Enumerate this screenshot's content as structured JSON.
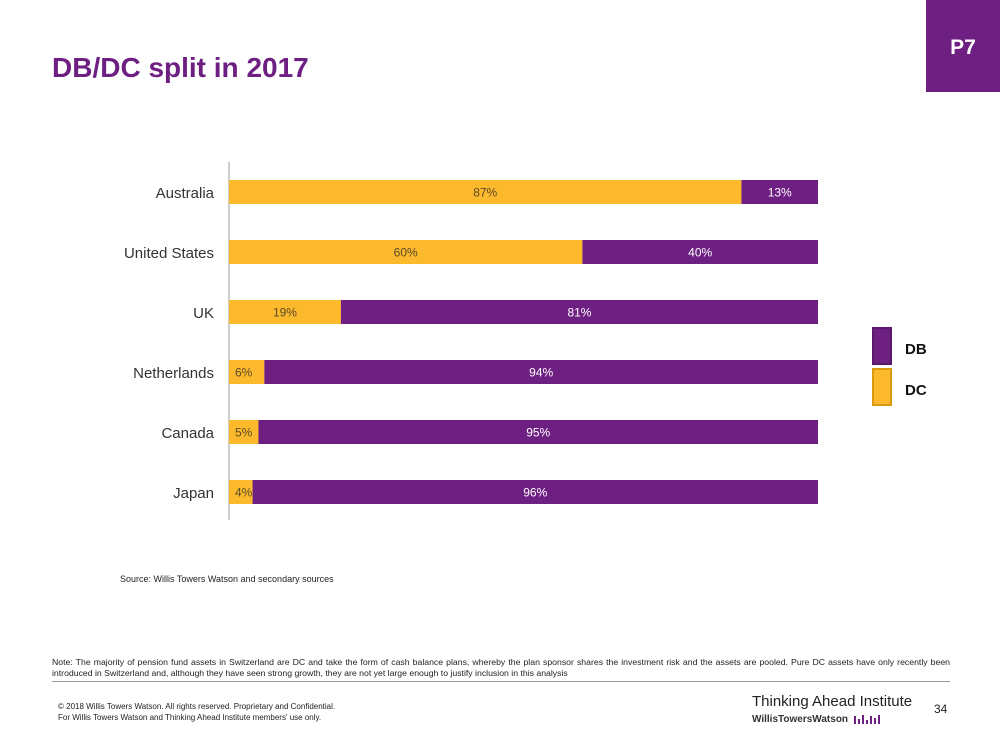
{
  "page_badge": "P7",
  "title": "DB/DC split in 2017",
  "colors": {
    "db": "#6e1f82",
    "dc": "#fdb92c",
    "dc_border": "#d99a12"
  },
  "legend": {
    "items": [
      {
        "label": "DB",
        "color": "#6e1f82"
      },
      {
        "label": "DC",
        "color": "#fdb92c"
      }
    ]
  },
  "chart_data": {
    "type": "bar",
    "orientation": "horizontal",
    "stacked": true,
    "categories": [
      "Australia",
      "United States",
      "UK",
      "Netherlands",
      "Canada",
      "Japan"
    ],
    "series": [
      {
        "name": "DC",
        "values": [
          87,
          60,
          19,
          6,
          5,
          4
        ],
        "labels": [
          "87%",
          "60%",
          "19%",
          "6%",
          "5%",
          "4%"
        ]
      },
      {
        "name": "DB",
        "values": [
          13,
          40,
          81,
          94,
          95,
          96
        ],
        "labels": [
          "13%",
          "40%",
          "81%",
          "94%",
          "95%",
          "96%"
        ]
      }
    ],
    "xlim": [
      0,
      100
    ],
    "legend_position": "right",
    "grid": false
  },
  "source": "Source: Willis Towers Watson and secondary sources",
  "note": "Note: The majority of pension fund assets in Switzerland are DC and take the form of cash balance plans, whereby the plan sponsor shares the investment risk and the assets are pooled. Pure DC assets have only recently been introduced in Switzerland and, although they have seen strong growth, they are not yet large enough to justify inclusion in this analysis",
  "copyright": {
    "line1": "© 2018 Willis Towers Watson. All rights reserved. Proprietary and Confidential.",
    "line2": "For Willis Towers Watson and Thinking Ahead Institute members' use only."
  },
  "brand": {
    "title": "Thinking Ahead Institute",
    "subtitle": "WillisTowersWatson"
  },
  "page_number": "34"
}
